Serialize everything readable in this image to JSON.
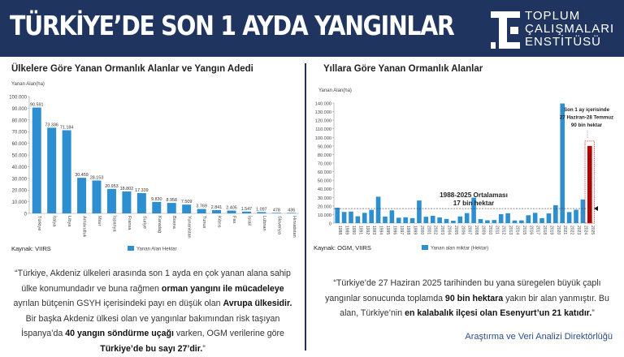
{
  "header": {
    "title": "TÜRKİYE’DE SON 1 AYDA YANGINLAR",
    "logo_lines": [
      "TOPLUM",
      "ÇALIŞMALARI",
      "ENSTİTÜSÜ"
    ],
    "background": "#1f3560"
  },
  "colors": {
    "bar": "#2d8fd0",
    "highlight": "#b30000",
    "navy": "#1f3560"
  },
  "chart_data": [
    {
      "type": "bar",
      "title": "Ülkelere Göre Yanan Ormanlık Alanlar ve Yangın Adedi",
      "ylabel": "Yanan Alan(ha)",
      "ylim": [
        0,
        100000
      ],
      "yticks": [
        "0",
        "10.000",
        "20.000",
        "30.000",
        "40.000",
        "50.000",
        "60.000",
        "70.000",
        "80.000",
        "90.000",
        "100.000"
      ],
      "categories": [
        "Türkiye",
        "İtalya",
        "Libya",
        "Arnavutluk",
        "Mısır",
        "İspanya",
        "Fransa",
        "Suriye",
        "Karadağ",
        "Bosna",
        "Yunanistan",
        "Tunus",
        "Kıbrıs",
        "Fas",
        "İsrail",
        "Lübnan",
        "Slovenya",
        "Hırvatistan"
      ],
      "values": [
        90591,
        73336,
        71184,
        30459,
        28153,
        20953,
        18802,
        17339,
        9830,
        8958,
        7509,
        3769,
        2841,
        2405,
        1547,
        1097,
        478,
        436
      ],
      "data_labels": [
        "90.591",
        "73.336",
        "71.184",
        "30.459",
        "28.153",
        "20.953",
        "18.802",
        "17.339",
        "9.830",
        "8.958",
        "7.509",
        "3.769",
        "2.841",
        "2.405",
        "1.547",
        "1.097",
        "478",
        "436"
      ],
      "series": [
        {
          "name": "Yanan Alan Hektar"
        }
      ],
      "legend": "bottom",
      "source": "Kaynak: VIIRS"
    },
    {
      "type": "bar",
      "title": "Yıllara Göre Yanan Ormanlık Alanlar",
      "ylabel": "Yanan Alan(ha)",
      "ylim": [
        0,
        140000
      ],
      "yticks": [
        "0",
        "10.000",
        "20.000",
        "30.000",
        "40.000",
        "50.000",
        "60.000",
        "70.000",
        "80.000",
        "90.000",
        "100.000",
        "110.000",
        "120.000",
        "130.000",
        "140.000"
      ],
      "categories": [
        "1988",
        "1989",
        "1990",
        "1991",
        "1992",
        "1993",
        "1994",
        "1995",
        "1996",
        "1997",
        "1998",
        "1999",
        "2000",
        "2001",
        "2002",
        "2003",
        "2004",
        "2005",
        "2006",
        "2007",
        "2008",
        "2009",
        "2010",
        "2011",
        "2012",
        "2013",
        "2014",
        "2015",
        "2016",
        "2017",
        "2018",
        "2019",
        "2020",
        "2021",
        "2022",
        "2023",
        "2024",
        "2025"
      ],
      "values": [
        18000,
        13000,
        13500,
        8000,
        12000,
        15500,
        30800,
        7700,
        14900,
        6300,
        6800,
        5800,
        26400,
        7400,
        8500,
        6600,
        4900,
        2800,
        7800,
        11700,
        29700,
        4700,
        3300,
        3600,
        10500,
        11500,
        3100,
        3200,
        9200,
        12000,
        5700,
        11300,
        20900,
        139500,
        12900,
        15600,
        27600,
        90000
      ],
      "highlight_category": "2025",
      "average": {
        "value": 17000,
        "label_lines": [
          "1988-2025 Ortalaması",
          "17 bin hektar"
        ]
      },
      "annotation_lines": [
        "Son 1 ay içerisinde",
        "27 Haziran-28 Temmuz",
        "90 bin hektar"
      ],
      "series": [
        {
          "name": "Yanan alan miktar (Hektar)"
        }
      ],
      "legend": "bottom",
      "source": "Kaynak: OGM, VIIRS"
    }
  ],
  "quotes": {
    "left": [
      {
        "t": "“Türkiye, Akdeniz ülkeleri arasında son 1 ayda en çok yanan alana sahip ülke konumundadır ve buna rağmen ",
        "b": false
      },
      {
        "t": "orman yangını ile mücadeleye",
        "b": true
      },
      {
        "t": " ayrılan bütçenin GSYH içerisindeki payı en düşük olan ",
        "b": false
      },
      {
        "t": "Avrupa ülkesidir.",
        "b": true
      },
      {
        "t": " Bir başka Akdeniz ülkesi olan ve yangınlar bakımından risk taşıyan İspanya’da ",
        "b": false
      },
      {
        "t": "40 yangın söndürme uçağı",
        "b": true
      },
      {
        "t": " varken, OGM verilerine göre ",
        "b": false
      },
      {
        "t": "Türkiye’de bu sayı 27’dir.",
        "b": true
      },
      {
        "t": "”",
        "b": false
      }
    ],
    "right": [
      {
        "t": "“Türkiye’de 27 Haziran 2025 tarihinden bu yana süregelen büyük çaplı yangınlar sonucunda toplamda ",
        "b": false
      },
      {
        "t": "90 bin hektara",
        "b": true
      },
      {
        "t": " yakın bir alan yanmıştır. Bu alan, Türkiye’nin ",
        "b": false
      },
      {
        "t": "en kalabalık ilçesi olan Esenyurt’un 21 katıdır.",
        "b": true
      },
      {
        "t": "”",
        "b": false
      }
    ]
  },
  "footer": {
    "signature": "Araştırma ve Veri Analizi Direktörlüğü"
  }
}
